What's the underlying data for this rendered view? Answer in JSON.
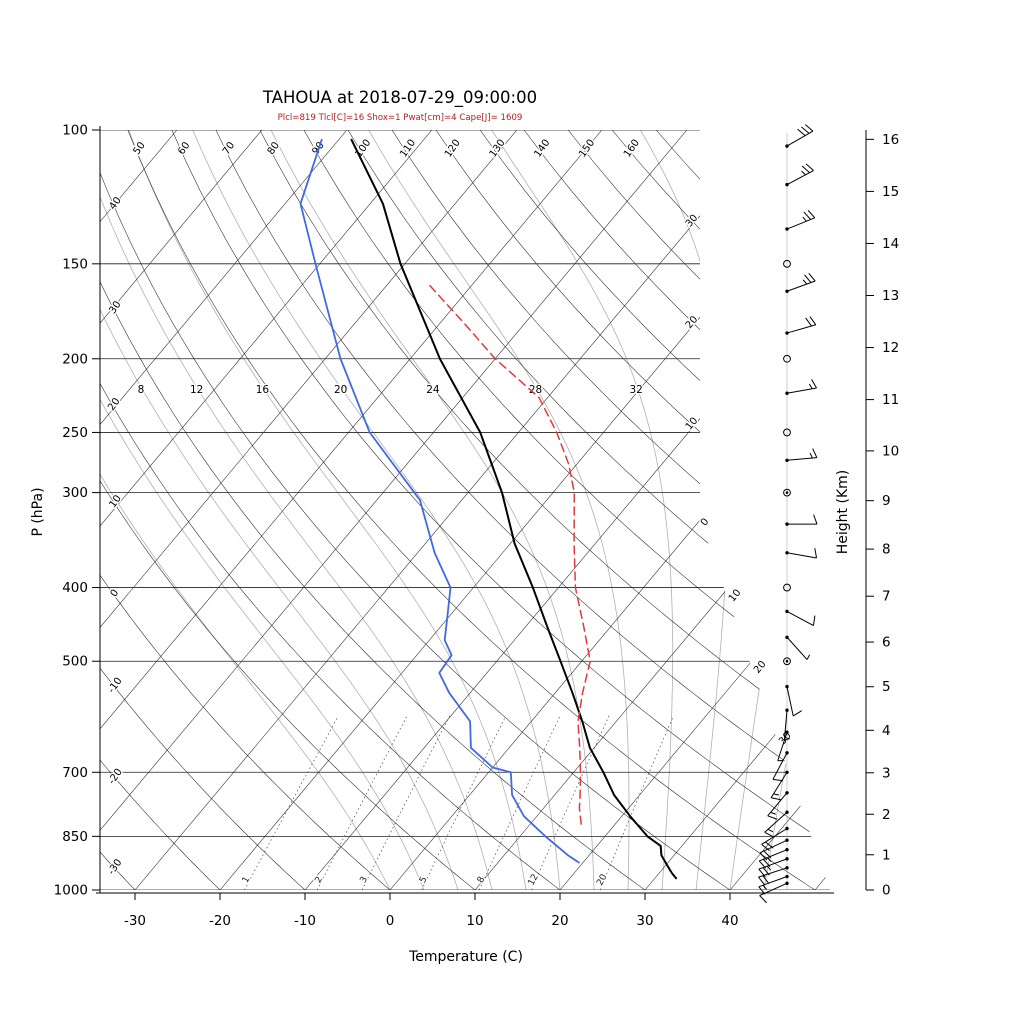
{
  "chart_data": {
    "type": "line",
    "variant": "skew-t-log-p-sounding",
    "title": "TAHOUA at 2018-07-29_09:00:00",
    "station": "TAHOUA",
    "datetime": "2018-07-29_09:00:00",
    "params_line": "Plcl=819 Tlcl[C]=16 Shox=1 Pwat[cm]=4 Cape[J]= 1609",
    "params": {
      "Plcl": 819,
      "Tlcl_C": 16,
      "Shox": 1,
      "Pwat_cm": 4,
      "Cape_J": 1609
    },
    "params_color": "#b22222",
    "axes": {
      "pressure": {
        "label": "P (hPa)",
        "scale": "log",
        "min": 100,
        "max": 1000,
        "ticks": [
          100,
          150,
          200,
          250,
          300,
          400,
          500,
          700,
          850,
          1000
        ]
      },
      "temperature": {
        "label": "Temperature (C)",
        "skewed": true,
        "ticks": [
          -30,
          -20,
          -10,
          0,
          10,
          20,
          30,
          40
        ]
      },
      "height": {
        "label": "Height (Km)",
        "ticks": [
          0,
          1,
          2,
          3,
          4,
          5,
          6,
          7,
          8,
          9,
          10,
          11,
          12,
          13,
          14,
          15,
          16
        ]
      }
    },
    "background_lines": {
      "isobars": [
        100,
        150,
        200,
        250,
        300,
        400,
        500,
        700,
        850,
        1000
      ],
      "isotherm_step": 10,
      "isotherm_labels_right": [
        {
          "t": -30,
          "text": "30"
        },
        {
          "t": -20,
          "text": "20"
        },
        {
          "t": -10,
          "text": "10"
        },
        {
          "t": 0,
          "text": "0"
        },
        {
          "t": 10,
          "text": "10"
        },
        {
          "t": 20,
          "text": "20"
        },
        {
          "t": 30,
          "text": "30"
        }
      ],
      "dry_adiabat_labels": [
        -30,
        -20,
        -10,
        0,
        10,
        20,
        30,
        40,
        50,
        60,
        70,
        80,
        90,
        100,
        110,
        120,
        130,
        140,
        150,
        160
      ],
      "moist_adiabats": [
        0,
        4,
        8,
        12,
        16,
        20,
        24,
        28,
        32,
        36,
        40,
        44
      ],
      "moist_adiabat_labels": [
        8,
        12,
        16,
        20,
        24,
        28,
        32
      ],
      "mixing_ratio_lines": [
        1,
        2,
        3,
        5,
        8,
        12,
        20
      ]
    },
    "series": {
      "temperature": {
        "name": "Temperature",
        "color": "#000000",
        "width": 2,
        "points_p_T": [
          [
            965,
            32.5
          ],
          [
            950,
            31.5
          ],
          [
            925,
            30
          ],
          [
            900,
            28.5
          ],
          [
            875,
            27.5
          ],
          [
            850,
            25
          ],
          [
            800,
            21
          ],
          [
            750,
            17
          ],
          [
            700,
            13.5
          ],
          [
            650,
            9.5
          ],
          [
            600,
            6
          ],
          [
            550,
            2
          ],
          [
            500,
            -2.5
          ],
          [
            450,
            -7.5
          ],
          [
            400,
            -13
          ],
          [
            350,
            -19.5
          ],
          [
            300,
            -26
          ],
          [
            250,
            -34.5
          ],
          [
            200,
            -46.5
          ],
          [
            150,
            -60.5
          ],
          [
            125,
            -68.5
          ],
          [
            103,
            -78.5
          ]
        ]
      },
      "dewpoint": {
        "name": "Dewpoint",
        "color": "#4169e1",
        "width": 1.8,
        "points_p_T": [
          [
            920,
            19.5
          ],
          [
            900,
            17.5
          ],
          [
            850,
            13
          ],
          [
            800,
            8.5
          ],
          [
            750,
            5
          ],
          [
            700,
            2.6
          ],
          [
            690,
            0
          ],
          [
            650,
            -4.5
          ],
          [
            600,
            -7.2
          ],
          [
            550,
            -12.5
          ],
          [
            518,
            -15.6
          ],
          [
            491,
            -15.9
          ],
          [
            469,
            -18.2
          ],
          [
            440,
            -20
          ],
          [
            400,
            -22.7
          ],
          [
            360,
            -28
          ],
          [
            307,
            -34.9
          ],
          [
            250,
            -47.5
          ],
          [
            200,
            -58.2
          ],
          [
            150,
            -70.5
          ],
          [
            125,
            -78.2
          ],
          [
            103,
            -82
          ]
        ]
      },
      "parcel": {
        "name": "Parcel ascent",
        "color": "#e03a3a",
        "width": 1.5,
        "dashed": true,
        "points_p_T": [
          [
            819,
            16
          ],
          [
            780,
            14.2
          ],
          [
            750,
            13
          ],
          [
            700,
            10.8
          ],
          [
            650,
            8.3
          ],
          [
            600,
            5.5
          ],
          [
            550,
            3.2
          ],
          [
            500,
            1
          ],
          [
            450,
            -3.2
          ],
          [
            400,
            -8
          ],
          [
            350,
            -12.5
          ],
          [
            300,
            -17.5
          ],
          [
            275,
            -21
          ],
          [
            250,
            -25.5
          ],
          [
            225,
            -31
          ],
          [
            200,
            -40
          ],
          [
            180,
            -47
          ],
          [
            160,
            -55
          ]
        ]
      }
    },
    "winds": [
      {
        "p": 105,
        "spd": 30,
        "dir": 60
      },
      {
        "p": 118,
        "spd": 25,
        "dir": 62
      },
      {
        "p": 135,
        "spd": 25,
        "dir": 68
      },
      {
        "p": 150,
        "calm": true
      },
      {
        "p": 163,
        "spd": 25,
        "dir": 70
      },
      {
        "p": 185,
        "spd": 20,
        "dir": 74
      },
      {
        "p": 200,
        "calm": true
      },
      {
        "p": 222,
        "spd": 15,
        "dir": 80
      },
      {
        "p": 250,
        "calm": true
      },
      {
        "p": 272,
        "spd": 15,
        "dir": 85
      },
      {
        "p": 300,
        "calm": true,
        "dot": true
      },
      {
        "p": 330,
        "spd": 10,
        "dir": 90
      },
      {
        "p": 360,
        "spd": 10,
        "dir": 100
      },
      {
        "p": 400,
        "calm": true
      },
      {
        "p": 430,
        "spd": 10,
        "dir": 118
      },
      {
        "p": 465,
        "spd": 5,
        "dir": 138
      },
      {
        "p": 500,
        "calm": true,
        "dot": true
      },
      {
        "p": 540,
        "spd": 10,
        "dir": 168
      },
      {
        "p": 580,
        "spd": 5,
        "dir": 185
      },
      {
        "p": 620,
        "spd": 5,
        "dir": 198
      },
      {
        "p": 660,
        "spd": 10,
        "dir": 208
      },
      {
        "p": 700,
        "spd": 15,
        "dir": 212
      },
      {
        "p": 745,
        "spd": 15,
        "dir": 220
      },
      {
        "p": 790,
        "spd": 15,
        "dir": 228
      },
      {
        "p": 830,
        "spd": 20,
        "dir": 238
      },
      {
        "p": 860,
        "spd": 20,
        "dir": 245
      },
      {
        "p": 885,
        "spd": 25,
        "dir": 248
      },
      {
        "p": 910,
        "spd": 25,
        "dir": 250
      },
      {
        "p": 935,
        "spd": 20,
        "dir": 252
      },
      {
        "p": 960,
        "spd": 15,
        "dir": 250
      },
      {
        "p": 980,
        "spd": 10,
        "dir": 246
      }
    ]
  }
}
